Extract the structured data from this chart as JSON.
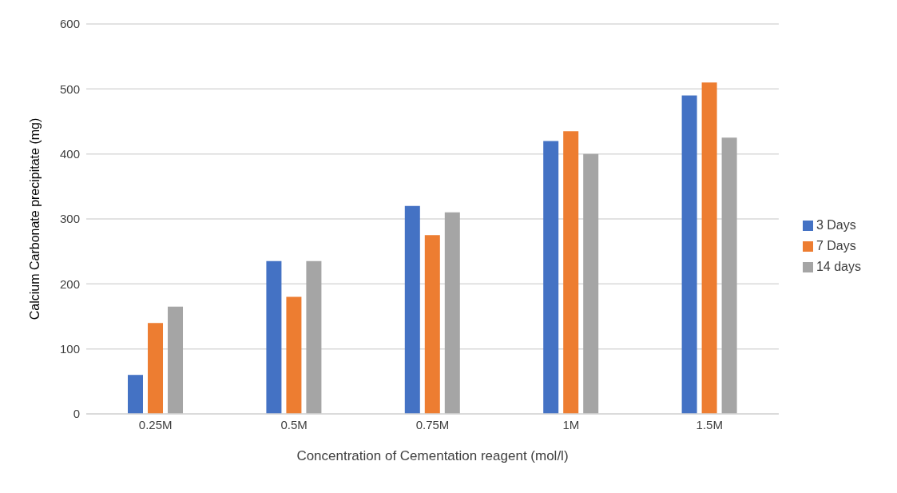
{
  "chart_data": {
    "type": "bar",
    "xlabel": "Concentration of  Cementation reagent (mol/l)",
    "ylabel": "Calcium Carbonate precipitate (mg)",
    "categories": [
      "0.25M",
      "0.5M",
      "0.75M",
      "1M",
      "1.5M"
    ],
    "series": [
      {
        "name": "3 Days",
        "color": "#4472c4",
        "values": [
          60,
          235,
          320,
          420,
          490
        ]
      },
      {
        "name": "7 Days",
        "color": "#ed7d31",
        "values": [
          140,
          180,
          275,
          435,
          510
        ]
      },
      {
        "name": "14 days",
        "color": "#a5a5a5",
        "values": [
          165,
          235,
          310,
          400,
          425
        ]
      }
    ],
    "ylim": [
      0,
      600
    ],
    "yticks": [
      0,
      100,
      200,
      300,
      400,
      500,
      600
    ],
    "grid": "y",
    "legend": "right"
  }
}
